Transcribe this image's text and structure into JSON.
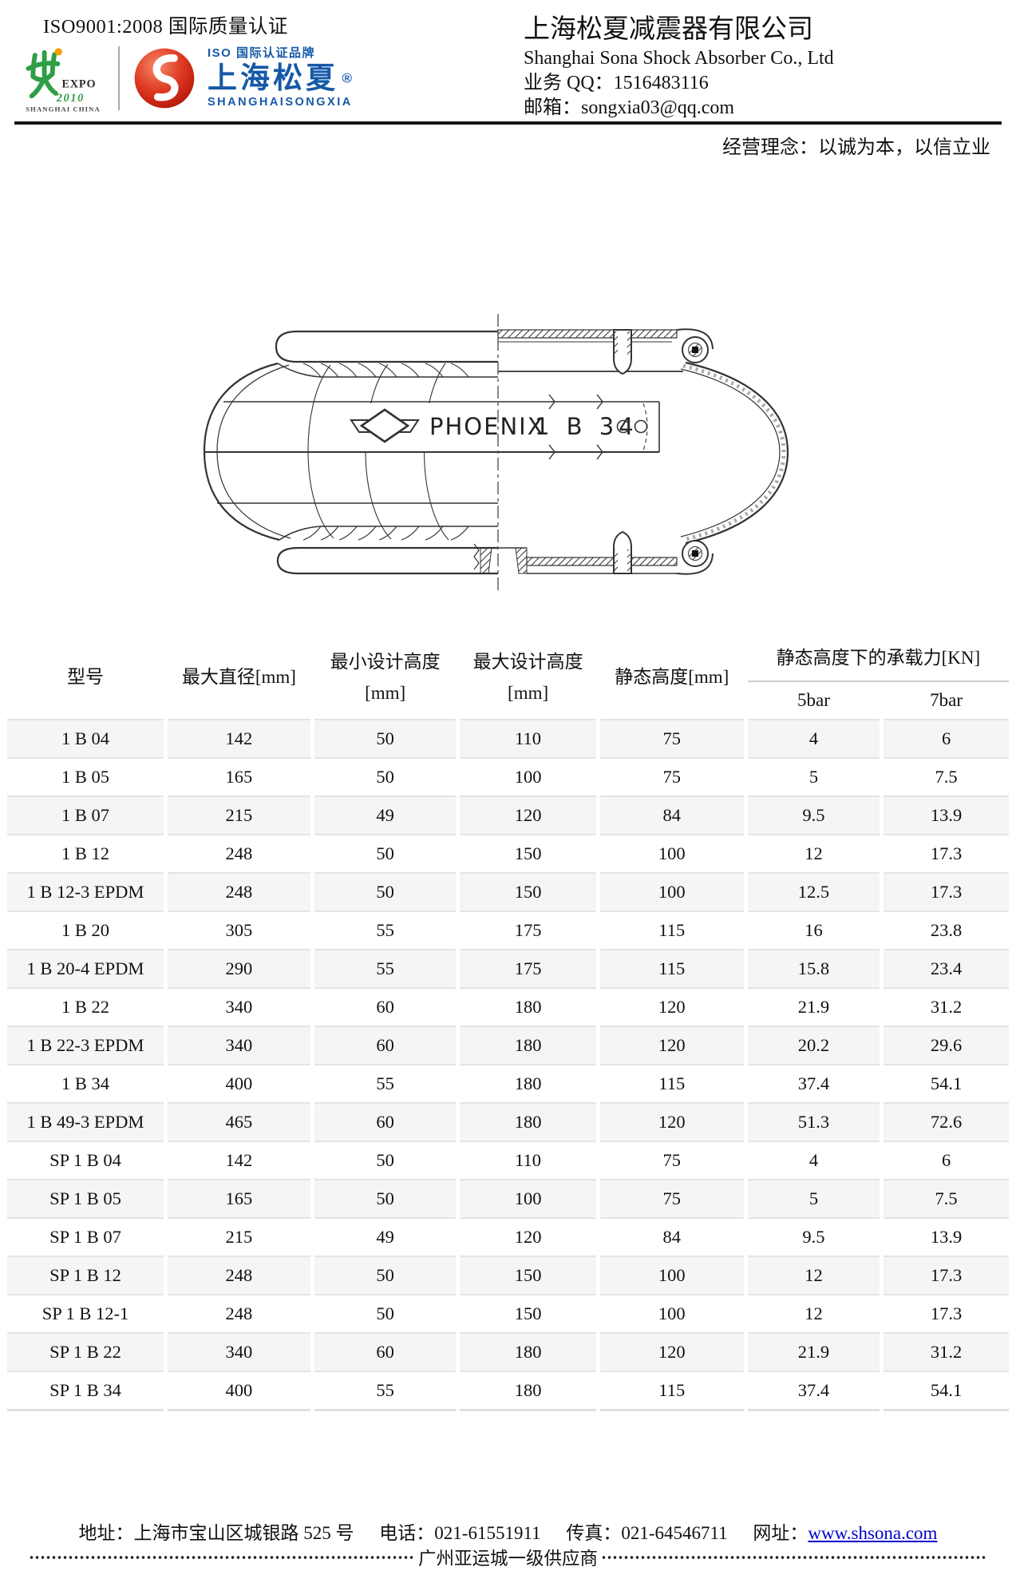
{
  "header": {
    "iso_cert": "ISO9001:2008 国际质量认证",
    "expo_logo": {
      "expo": "EXPO",
      "year": "2010",
      "country": "SHANGHAI CHINA"
    },
    "brand_logo": {
      "iso_line": "ISO 国际认证品牌",
      "brand_cn": "上海松夏",
      "reg_mark": "®",
      "brand_en": "SHANGHAISONGXIA",
      "ball_letter": "S"
    },
    "company_cn": "上海松夏减震器有限公司",
    "company_en": "Shanghai Sona Shock Absorber Co., Ltd",
    "qq_line": "业务 QQ：1516483116",
    "email_line": "邮箱：songxia03@qq.com",
    "motto": "经营理念：以诚为本，以信立业"
  },
  "drawing": {
    "brand_text": "PHOENIX",
    "model_text": "1 B 34"
  },
  "table": {
    "columns": {
      "model": "型号",
      "max_diameter": "最大直径[mm]",
      "min_design_height_l1": "最小设计高度",
      "min_design_height_l2": "[mm]",
      "max_design_height_l1": "最大设计高度",
      "max_design_height_l2": "[mm]",
      "static_height": "静态高度[mm]",
      "load_group": "静态高度下的承载力[KN]",
      "bar5": "5bar",
      "bar7": "7bar"
    },
    "rows": [
      {
        "model": "1 B 04",
        "max_diameter": 142,
        "min_design_height": 50,
        "max_design_height": 110,
        "static_height": 75,
        "load_5bar": 4,
        "load_7bar": 6
      },
      {
        "model": "1 B 05",
        "max_diameter": 165,
        "min_design_height": 50,
        "max_design_height": 100,
        "static_height": 75,
        "load_5bar": 5,
        "load_7bar": 7.5
      },
      {
        "model": "1 B 07",
        "max_diameter": 215,
        "min_design_height": 49,
        "max_design_height": 120,
        "static_height": 84,
        "load_5bar": 9.5,
        "load_7bar": 13.9
      },
      {
        "model": "1 B 12",
        "max_diameter": 248,
        "min_design_height": 50,
        "max_design_height": 150,
        "static_height": 100,
        "load_5bar": 12,
        "load_7bar": 17.3
      },
      {
        "model": "1 B 12-3 EPDM",
        "max_diameter": 248,
        "min_design_height": 50,
        "max_design_height": 150,
        "static_height": 100,
        "load_5bar": 12.5,
        "load_7bar": 17.3
      },
      {
        "model": "1 B 20",
        "max_diameter": 305,
        "min_design_height": 55,
        "max_design_height": 175,
        "static_height": 115,
        "load_5bar": 16,
        "load_7bar": 23.8
      },
      {
        "model": "1 B 20-4 EPDM",
        "max_diameter": 290,
        "min_design_height": 55,
        "max_design_height": 175,
        "static_height": 115,
        "load_5bar": 15.8,
        "load_7bar": 23.4
      },
      {
        "model": "1 B 22",
        "max_diameter": 340,
        "min_design_height": 60,
        "max_design_height": 180,
        "static_height": 120,
        "load_5bar": 21.9,
        "load_7bar": 31.2
      },
      {
        "model": "1 B 22-3 EPDM",
        "max_diameter": 340,
        "min_design_height": 60,
        "max_design_height": 180,
        "static_height": 120,
        "load_5bar": 20.2,
        "load_7bar": 29.6
      },
      {
        "model": "1 B 34",
        "max_diameter": 400,
        "min_design_height": 55,
        "max_design_height": 180,
        "static_height": 115,
        "load_5bar": 37.4,
        "load_7bar": 54.1
      },
      {
        "model": "1 B 49-3 EPDM",
        "max_diameter": 465,
        "min_design_height": 60,
        "max_design_height": 180,
        "static_height": 120,
        "load_5bar": 51.3,
        "load_7bar": 72.6
      },
      {
        "model": "SP 1 B 04",
        "max_diameter": 142,
        "min_design_height": 50,
        "max_design_height": 110,
        "static_height": 75,
        "load_5bar": 4,
        "load_7bar": 6
      },
      {
        "model": "SP 1 B 05",
        "max_diameter": 165,
        "min_design_height": 50,
        "max_design_height": 100,
        "static_height": 75,
        "load_5bar": 5,
        "load_7bar": 7.5
      },
      {
        "model": "SP 1 B 07",
        "max_diameter": 215,
        "min_design_height": 49,
        "max_design_height": 120,
        "static_height": 84,
        "load_5bar": 9.5,
        "load_7bar": 13.9
      },
      {
        "model": "SP 1 B 12",
        "max_diameter": 248,
        "min_design_height": 50,
        "max_design_height": 150,
        "static_height": 100,
        "load_5bar": 12,
        "load_7bar": 17.3
      },
      {
        "model": "SP 1 B 12-1",
        "max_diameter": 248,
        "min_design_height": 50,
        "max_design_height": 150,
        "static_height": 100,
        "load_5bar": 12,
        "load_7bar": 17.3
      },
      {
        "model": "SP 1 B 22",
        "max_diameter": 340,
        "min_design_height": 60,
        "max_design_height": 180,
        "static_height": 120,
        "load_5bar": 21.9,
        "load_7bar": 31.2
      },
      {
        "model": "SP 1 B 34",
        "max_diameter": 400,
        "min_design_height": 55,
        "max_design_height": 180,
        "static_height": 115,
        "load_5bar": 37.4,
        "load_7bar": 54.1
      }
    ]
  },
  "footer": {
    "address": "地址：上海市宝山区城银路 525 号",
    "phone": "电话：021-61551911",
    "fax": "传真：021-64546711",
    "web_label": "网址：",
    "web_url": "www.shsona.com",
    "banner": "广州亚运城一级供应商"
  },
  "colors": {
    "brand_blue": "#1659a7",
    "brand_red": "#d6281a",
    "expo_green": "#2f9e44",
    "expo_orange": "#f59f00",
    "link_blue": "#0000cc",
    "row_stripe": "#f5f5f5"
  }
}
